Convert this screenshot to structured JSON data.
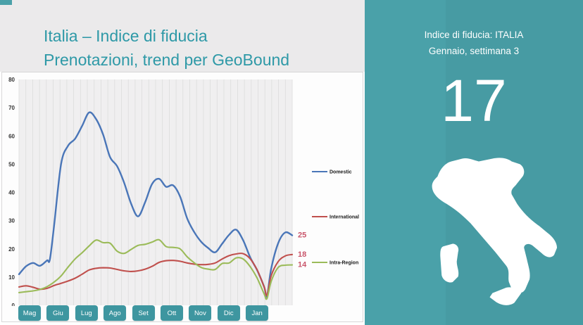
{
  "header": {
    "title_line1": "Italia – Indice di fiducia",
    "title_line2": "Prenotazioni, trend per GeoBound",
    "title_color": "#2e99a7"
  },
  "right_panel": {
    "background": "#4aa1a9",
    "heading_line1": "Indice di fiducia: ITALIA",
    "heading_line2": "Gennaio, settimana 3",
    "index_value": "17",
    "map_icon": "italy-map-silhouette",
    "map_color": "#ffffff"
  },
  "chart_data": {
    "type": "line",
    "title": "",
    "x_axis": {
      "categories": [
        "Mag",
        "Giu",
        "Lug",
        "Ago",
        "Set",
        "Ott",
        "Nov",
        "Dic",
        "Jan"
      ],
      "unit": "weeks",
      "weeks_total": 39,
      "gridlines": "weekly-vertical"
    },
    "y_axis": {
      "min": 0,
      "max": 80,
      "tick_step": 10,
      "ticks": [
        0,
        10,
        20,
        30,
        40,
        50,
        60,
        70,
        80
      ]
    },
    "legend_position": "right",
    "plot_background": "#f0eff0",
    "gridline_color": "#dcdcdc",
    "end_label_color": "#c9566b",
    "month_button_color": "#3e96a0",
    "series": [
      {
        "name": "Domestic",
        "color": "#4a76b8",
        "end_label": "25",
        "points": [
          [
            0,
            11
          ],
          [
            1,
            13.8
          ],
          [
            2,
            15
          ],
          [
            3,
            14
          ],
          [
            4,
            15.9
          ],
          [
            4.4,
            16.2
          ],
          [
            5,
            28
          ],
          [
            6,
            50
          ],
          [
            7,
            56.5
          ],
          [
            8,
            59
          ],
          [
            9,
            63.5
          ],
          [
            10,
            68.3
          ],
          [
            11,
            66
          ],
          [
            12,
            60.5
          ],
          [
            13,
            52.5
          ],
          [
            14,
            49.3
          ],
          [
            15,
            43.5
          ],
          [
            16,
            36
          ],
          [
            17,
            31.5
          ],
          [
            18,
            36.5
          ],
          [
            19,
            43
          ],
          [
            20,
            44.8
          ],
          [
            21,
            42
          ],
          [
            22,
            42.5
          ],
          [
            23,
            38.5
          ],
          [
            24,
            30.8
          ],
          [
            25,
            26
          ],
          [
            26,
            22.5
          ],
          [
            27,
            20.3
          ],
          [
            28,
            18.8
          ],
          [
            29,
            21.8
          ],
          [
            30,
            25
          ],
          [
            31,
            26.8
          ],
          [
            32,
            23
          ],
          [
            33,
            17
          ],
          [
            34,
            12.4
          ],
          [
            35,
            6.5
          ],
          [
            35.4,
            3.2
          ],
          [
            36,
            13
          ],
          [
            37,
            22
          ],
          [
            38,
            25.8
          ],
          [
            39,
            24.8
          ]
        ]
      },
      {
        "name": "International",
        "color": "#c0504d",
        "end_label": "18",
        "points": [
          [
            0,
            6.5
          ],
          [
            1,
            6.9
          ],
          [
            2,
            6.4
          ],
          [
            3,
            5.7
          ],
          [
            4,
            6.0
          ],
          [
            5,
            7.0
          ],
          [
            6,
            7.8
          ],
          [
            7,
            8.6
          ],
          [
            8,
            9.6
          ],
          [
            9,
            11.0
          ],
          [
            10,
            12.5
          ],
          [
            11,
            13.1
          ],
          [
            12,
            13.3
          ],
          [
            13,
            13.2
          ],
          [
            14,
            12.7
          ],
          [
            15,
            12.2
          ],
          [
            16,
            12.0
          ],
          [
            17,
            12.2
          ],
          [
            18,
            12.8
          ],
          [
            19,
            13.8
          ],
          [
            20,
            15.2
          ],
          [
            21,
            15.8
          ],
          [
            22,
            15.9
          ],
          [
            23,
            15.6
          ],
          [
            24,
            15.0
          ],
          [
            25,
            14.6
          ],
          [
            26,
            14.4
          ],
          [
            27,
            14.5
          ],
          [
            28,
            15.0
          ],
          [
            29,
            16.4
          ],
          [
            30,
            17.6
          ],
          [
            31,
            18.2
          ],
          [
            32,
            18.3
          ],
          [
            33,
            16.5
          ],
          [
            34,
            12.5
          ],
          [
            35,
            6.5
          ],
          [
            35.4,
            3.6
          ],
          [
            36,
            10.5
          ],
          [
            37,
            15.5
          ],
          [
            38,
            17.5
          ],
          [
            39,
            18
          ]
        ]
      },
      {
        "name": "Intra-Region",
        "color": "#9bbb59",
        "end_label": "14",
        "points": [
          [
            0,
            4.5
          ],
          [
            1,
            4.8
          ],
          [
            2,
            5.1
          ],
          [
            3,
            5.6
          ],
          [
            4,
            6.6
          ],
          [
            5,
            8.2
          ],
          [
            6,
            10.4
          ],
          [
            7,
            13.5
          ],
          [
            8,
            16.4
          ],
          [
            9,
            18.6
          ],
          [
            10,
            21
          ],
          [
            11,
            23.1
          ],
          [
            12,
            22.2
          ],
          [
            13,
            22
          ],
          [
            14,
            19.2
          ],
          [
            15,
            18.4
          ],
          [
            16,
            19.8
          ],
          [
            17,
            21.2
          ],
          [
            18,
            21.6
          ],
          [
            19,
            22.4
          ],
          [
            20,
            23.2
          ],
          [
            21,
            20.8
          ],
          [
            22,
            20.5
          ],
          [
            23,
            20
          ],
          [
            24,
            17.2
          ],
          [
            25,
            15.1
          ],
          [
            26,
            13.4
          ],
          [
            27,
            12.8
          ],
          [
            28,
            12.7
          ],
          [
            29,
            14.8
          ],
          [
            30,
            15
          ],
          [
            31,
            16.8
          ],
          [
            32,
            16.4
          ],
          [
            33,
            13.7
          ],
          [
            34,
            9.6
          ],
          [
            35,
            4
          ],
          [
            35.4,
            2.4
          ],
          [
            36,
            8.5
          ],
          [
            37,
            13.4
          ],
          [
            38,
            14.2
          ],
          [
            39,
            14.3
          ]
        ]
      }
    ]
  }
}
